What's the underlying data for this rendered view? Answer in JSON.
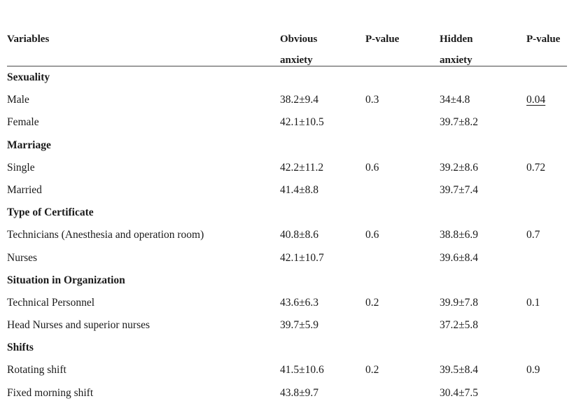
{
  "headers": {
    "variables": "Variables",
    "obvious_line1": "Obvious",
    "obvious_line2": "anxiety",
    "pvalue1": "P-value",
    "hidden_line1": "Hidden",
    "hidden_line2": "anxiety",
    "pvalue2": "P-value"
  },
  "rows": [
    {
      "type": "group",
      "label": "Sexuality"
    },
    {
      "type": "data",
      "label": "Male",
      "obvious": "38.2±9.4",
      "p1": "0.3",
      "hidden": "34±4.8",
      "p2": "0.04",
      "p2_underlined": true
    },
    {
      "type": "data",
      "label": "Female",
      "obvious": "42.1±10.5",
      "p1": "",
      "hidden": "39.7±8.2",
      "p2": ""
    },
    {
      "type": "group",
      "label": "Marriage"
    },
    {
      "type": "data",
      "label": "Single",
      "obvious": "42.2±11.2",
      "p1": "0.6",
      "hidden": "39.2±8.6",
      "p2": "0.72"
    },
    {
      "type": "data",
      "label": "Married",
      "obvious": "41.4±8.8",
      "p1": "",
      "hidden": "39.7±7.4",
      "p2": ""
    },
    {
      "type": "group",
      "label": "Type of Certificate"
    },
    {
      "type": "data",
      "label": "Technicians (Anesthesia and operation room)",
      "obvious": "40.8±8.6",
      "p1": "0.6",
      "hidden": "38.8±6.9",
      "p2": "0.7"
    },
    {
      "type": "data",
      "label": "Nurses",
      "obvious": "42.1±10.7",
      "p1": "",
      "hidden": "39.6±8.4",
      "p2": ""
    },
    {
      "type": "group",
      "label": "Situation in Organization"
    },
    {
      "type": "data",
      "label": "Technical Personnel",
      "obvious": "43.6±6.3",
      "p1": "0.2",
      "hidden": "39.9±7.8",
      "p2": "0.1"
    },
    {
      "type": "data",
      "label": "Head Nurses and superior nurses",
      "obvious": "39.7±5.9",
      "p1": "",
      "hidden": "37.2±5.8",
      "p2": ""
    },
    {
      "type": "group",
      "label": "Shifts"
    },
    {
      "type": "data",
      "label": "Rotating shift",
      "obvious": "41.5±10.6",
      "p1": "0.2",
      "hidden": "39.5±8.4",
      "p2": "0.9"
    },
    {
      "type": "data",
      "label": "Fixed morning shift",
      "obvious": "43.8±9.7",
      "p1": "",
      "hidden": "30.4±7.5",
      "p2": ""
    }
  ]
}
